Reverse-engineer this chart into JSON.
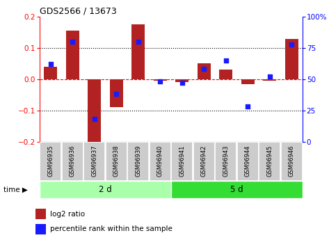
{
  "title": "GDS2566 / 13673",
  "samples": [
    "GSM96935",
    "GSM96936",
    "GSM96937",
    "GSM96938",
    "GSM96939",
    "GSM96940",
    "GSM96941",
    "GSM96942",
    "GSM96943",
    "GSM96944",
    "GSM96945",
    "GSM96946"
  ],
  "log2_ratio": [
    0.04,
    0.155,
    -0.21,
    -0.09,
    0.175,
    -0.005,
    -0.01,
    0.05,
    0.03,
    -0.015,
    -0.005,
    0.13
  ],
  "percentile_rank": [
    62,
    80,
    18,
    38,
    80,
    48,
    47,
    58,
    65,
    28,
    52,
    78
  ],
  "group1_label": "2 d",
  "group1_count": 6,
  "group2_label": "5 d",
  "group2_count": 6,
  "bar_color": "#b22222",
  "dot_color": "#1a1aff",
  "ylim_left": [
    -0.2,
    0.2
  ],
  "ylim_right": [
    0,
    100
  ],
  "yticks_left": [
    -0.2,
    -0.1,
    0.0,
    0.1,
    0.2
  ],
  "yticks_right": [
    0,
    25,
    50,
    75,
    100
  ],
  "ytick_labels_right": [
    "0",
    "25",
    "50",
    "75",
    "100%"
  ],
  "legend_items": [
    "log2 ratio",
    "percentile rank within the sample"
  ],
  "time_label": "time",
  "group1_bg": "#aaffaa",
  "group2_bg": "#33dd33",
  "sample_bg": "#cccccc",
  "bar_width": 0.6,
  "figwidth": 4.73,
  "figheight": 3.45,
  "dpi": 100
}
